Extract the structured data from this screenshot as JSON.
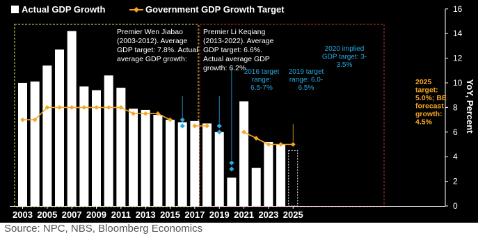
{
  "chart_data": {
    "type": "bar",
    "legend": {
      "bars_label": "Actual GDP Growth",
      "line_label": "Government GDP Growth Target",
      "placement": "top-left"
    },
    "ylabel": "YoY, Percent",
    "ylim": [
      0,
      16
    ],
    "yticks": [
      0,
      2,
      4,
      6,
      8,
      10,
      12,
      14,
      16
    ],
    "xticks": [
      "2003",
      "2005",
      "2007",
      "2009",
      "2011",
      "2013",
      "2015",
      "2017",
      "2019",
      "2021",
      "2023",
      "2025"
    ],
    "years": [
      2003,
      2004,
      2005,
      2006,
      2007,
      2008,
      2009,
      2010,
      2011,
      2012,
      2013,
      2014,
      2015,
      2016,
      2017,
      2018,
      2019,
      2020,
      2021,
      2022,
      2023,
      2024,
      2025
    ],
    "actual_growth": [
      10.0,
      10.1,
      11.4,
      12.7,
      14.2,
      9.7,
      9.4,
      10.6,
      9.6,
      7.9,
      7.8,
      7.4,
      7.0,
      6.8,
      6.9,
      6.7,
      6.0,
      2.3,
      8.5,
      3.1,
      5.2,
      5.0,
      null
    ],
    "forecast_2025": 4.5,
    "target_line": [
      {
        "year": 2003,
        "value": 7.0
      },
      {
        "year": 2004,
        "value": 7.0
      },
      {
        "year": 2005,
        "value": 8.0
      },
      {
        "year": 2006,
        "value": 8.0
      },
      {
        "year": 2007,
        "value": 8.0
      },
      {
        "year": 2008,
        "value": 8.0
      },
      {
        "year": 2009,
        "value": 8.0
      },
      {
        "year": 2010,
        "value": 8.0
      },
      {
        "year": 2011,
        "value": 8.0
      },
      {
        "year": 2012,
        "value": 7.5
      },
      {
        "year": 2013,
        "value": 7.5
      },
      {
        "year": 2014,
        "value": 7.5
      },
      {
        "year": 2015,
        "value": 7.0
      },
      {
        "year": 2016,
        "value": null
      },
      {
        "year": 2017,
        "value": 6.5
      },
      {
        "year": 2018,
        "value": 6.5
      },
      {
        "year": 2019,
        "value": null
      },
      {
        "year": 2020,
        "value": null
      },
      {
        "year": 2021,
        "value": 6.0
      },
      {
        "year": 2022,
        "value": 5.5
      },
      {
        "year": 2023,
        "value": 5.0
      },
      {
        "year": 2024,
        "value": 5.0
      },
      {
        "year": 2025,
        "value": 5.0
      }
    ],
    "target_ranges": [
      {
        "year": 2016,
        "low": 6.5,
        "high": 7.0
      },
      {
        "year": 2019,
        "low": 6.0,
        "high": 6.5
      },
      {
        "year": 2020,
        "low": 3.0,
        "high": 3.5
      }
    ],
    "annotations": {
      "wen_lines": [
        "Premier Wen Jiabao",
        "(2003-2012). Average",
        "GDP target: 7.8%. Actual",
        "average GDP growth:"
      ],
      "li_lines": [
        "Premier Li Keqiang",
        "(2013-2022). Average",
        "GDP target: 6.6%.",
        "Actual average GDP",
        "growth: 6.2%"
      ],
      "range_2016_lines": [
        "2016 target",
        "range:",
        "6.5-7%"
      ],
      "range_2019_lines": [
        "2019 target",
        "range: 6.0-",
        "6.5%"
      ],
      "implied_2020_lines": [
        "2020 implied",
        "GDP target: 3-",
        "3.5%"
      ],
      "target_2025_lines": [
        "2025",
        "target:",
        "5.0%; BE",
        "forecast",
        "growth:",
        "4.5%"
      ]
    },
    "colors": {
      "background": "#000000",
      "bars": "#ffffff",
      "target_line": "#f5a623",
      "range_markers": "#29a8e0",
      "wen_box": "#e8e05a",
      "li_box": "#c0392b"
    },
    "grid": false
  },
  "source": "Source: NPC, NBS, Bloomberg Economics"
}
